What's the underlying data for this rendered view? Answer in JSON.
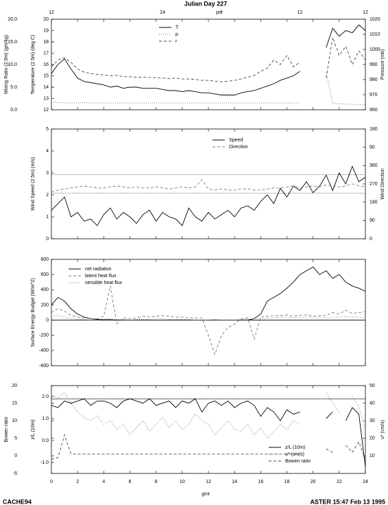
{
  "title": "Julian Day 227",
  "top_axis_label": "pdt",
  "top_ticks": [
    {
      "value": 0,
      "label": "12"
    },
    {
      "value": 8.5,
      "label": "24"
    },
    {
      "value": 19,
      "label": "12"
    },
    {
      "value": 24,
      "label": "12"
    }
  ],
  "xlabel": "gmt",
  "footer_left": "CACHE94",
  "footer_right": "ASTER 15:47 Feb 13 1995",
  "chart_data": [
    {
      "type": "line",
      "xlim": [
        0,
        24
      ],
      "x": [
        0,
        0.5,
        1,
        1.5,
        2,
        2.5,
        3,
        3.5,
        4,
        4.5,
        5,
        5.5,
        6,
        6.5,
        7,
        7.5,
        8,
        8.5,
        9,
        9.5,
        10,
        10.5,
        11,
        11.5,
        12,
        12.5,
        13,
        13.5,
        14,
        14.5,
        15,
        15.5,
        16,
        16.5,
        17,
        17.5,
        18,
        18.5,
        19,
        19.5,
        20,
        20.5,
        21,
        21.5,
        22,
        22.5,
        23,
        23.5,
        24
      ],
      "ylabel": "Temperature (2.5m) (deg C)",
      "ylim": [
        12,
        20
      ],
      "yticks": [
        12,
        13,
        14,
        15,
        16,
        17,
        18,
        19,
        20
      ],
      "y3label": "Mixing Ratio (2.5m) (gm/kg)",
      "y3lim": [
        0,
        20
      ],
      "y3ticks": [
        {
          "value": 0,
          "label": "0.0"
        },
        {
          "value": 5,
          "label": "5.0"
        },
        {
          "value": 10,
          "label": "10.0"
        },
        {
          "value": 15,
          "label": "15.0"
        },
        {
          "value": 20,
          "label": "20.0"
        }
      ],
      "y2label": "Pressure (mb)",
      "y2lim": [
        960,
        1020
      ],
      "y2ticks": [
        960,
        970,
        980,
        990,
        1000,
        1010,
        1020
      ],
      "series": [
        {
          "name": "T",
          "color": "#000000",
          "dash": "solid",
          "axis": "y",
          "values": [
            15.2,
            16.0,
            16.5,
            15.6,
            14.8,
            14.5,
            14.4,
            14.3,
            14.2,
            14.0,
            14.1,
            13.9,
            14.0,
            14.0,
            13.9,
            13.9,
            13.9,
            13.8,
            13.7,
            13.7,
            13.6,
            13.7,
            13.6,
            13.5,
            13.5,
            13.4,
            13.3,
            13.3,
            13.3,
            13.5,
            13.6,
            13.7,
            13.9,
            14.1,
            14.3,
            14.6,
            14.8,
            15.0,
            15.4,
            null,
            null,
            null,
            17.5,
            19.2,
            18.5,
            19.0,
            18.8,
            19.5,
            19.0
          ]
        },
        {
          "name": "p",
          "color": "#666666",
          "dash": "dotted",
          "axis": "y2",
          "values": [
            965,
            964.8,
            964.6,
            964.5,
            964.6,
            964.7,
            964.5,
            964.6,
            964.5,
            964.4,
            964.5,
            964.6,
            964.5,
            964.5,
            964.4,
            964.5,
            964.6,
            964.5,
            964.5,
            964.4,
            964.5,
            964.5,
            964.6,
            964.5,
            964.4,
            964.5,
            964.5,
            964.6,
            964.5,
            964.5,
            964.4,
            964.5,
            964.5,
            964.6,
            964.5,
            964.5,
            964.4,
            964.5,
            964.5,
            null,
            null,
            null,
            985,
            964.2,
            964,
            963.8,
            963.6,
            963.5,
            963.4
          ]
        },
        {
          "name": "r",
          "color": "#444444",
          "dash": "dashed",
          "axis": "y3",
          "values": [
            9.5,
            11,
            11.5,
            10.5,
            9,
            8.3,
            8,
            7.8,
            7.7,
            7.5,
            7.6,
            7.3,
            7.3,
            7.2,
            7.2,
            7.1,
            7.1,
            7,
            6.9,
            7,
            6.8,
            6.8,
            6.7,
            6.5,
            6.5,
            6.3,
            6.2,
            6.3,
            6.5,
            6.8,
            7.2,
            7.6,
            8.5,
            9.2,
            11,
            10,
            12,
            9.5,
            10.5,
            null,
            null,
            null,
            7,
            16,
            12,
            14,
            10,
            13,
            11
          ]
        }
      ]
    },
    {
      "type": "line",
      "xlim": [
        0,
        24
      ],
      "x": [
        0,
        0.5,
        1,
        1.5,
        2,
        2.5,
        3,
        3.5,
        4,
        4.5,
        5,
        5.5,
        6,
        6.5,
        7,
        7.5,
        8,
        8.5,
        9,
        9.5,
        10,
        10.5,
        11,
        11.5,
        12,
        12.5,
        13,
        13.5,
        14,
        14.5,
        15,
        15.5,
        16,
        16.5,
        17,
        17.5,
        18,
        18.5,
        19,
        19.5,
        20,
        20.5,
        21,
        21.5,
        22,
        22.5,
        23,
        23.5,
        24
      ],
      "ylabel": "Wind Speed (2.5m) (m/s)",
      "ylim": [
        0,
        5
      ],
      "yticks": [
        0,
        1,
        2,
        3,
        4,
        5
      ],
      "y2label": "Wind Direction",
      "y2lim": [
        0,
        540
      ],
      "y2ticks": [
        0,
        90,
        180,
        270,
        360,
        {
          "value": 450,
          "label": "90"
        },
        {
          "value": 540,
          "label": "180"
        }
      ],
      "hlines_axis": "y2",
      "hlines": [
        225,
        315
      ],
      "series": [
        {
          "name": "Speed",
          "color": "#000000",
          "dash": "solid",
          "axis": "y",
          "values": [
            1.3,
            1.6,
            1.9,
            1.0,
            1.2,
            0.8,
            0.9,
            0.6,
            1.1,
            1.4,
            0.9,
            1.2,
            1.0,
            0.7,
            1.1,
            1.3,
            0.8,
            1.2,
            1.0,
            0.9,
            0.6,
            1.4,
            1.0,
            0.8,
            1.2,
            0.9,
            1.1,
            1.3,
            1.0,
            1.4,
            1.5,
            1.3,
            1.7,
            2.0,
            1.6,
            2.3,
            1.9,
            2.4,
            2.2,
            2.6,
            2.1,
            2.4,
            2.9,
            2.2,
            3.0,
            2.5,
            3.3,
            2.6,
            2.8
          ]
        },
        {
          "name": "Direction",
          "color": "#777777",
          "dash": "dashed",
          "axis": "y2",
          "values": [
            230,
            240,
            245,
            250,
            255,
            260,
            255,
            250,
            250,
            255,
            260,
            255,
            250,
            255,
            250,
            250,
            255,
            250,
            245,
            250,
            255,
            250,
            255,
            290,
            245,
            240,
            245,
            240,
            240,
            245,
            245,
            240,
            240,
            245,
            250,
            250,
            255,
            260,
            250,
            255,
            260,
            255,
            265,
            260,
            255,
            260,
            270,
            260,
            255
          ]
        }
      ]
    },
    {
      "type": "line",
      "xlim": [
        0,
        24
      ],
      "x": [
        0,
        0.5,
        1,
        1.5,
        2,
        2.5,
        3,
        3.5,
        4,
        4.5,
        5,
        5.5,
        6,
        6.5,
        7,
        7.5,
        8,
        8.5,
        9,
        9.5,
        10,
        10.5,
        11,
        11.5,
        12,
        12.5,
        13,
        13.5,
        14,
        14.5,
        15,
        15.5,
        16,
        16.5,
        17,
        17.5,
        18,
        18.5,
        19,
        19.5,
        20,
        20.5,
        21,
        21.5,
        22,
        22.5,
        23,
        23.5,
        24
      ],
      "ylabel": "Surface Energy Budget (W/m^2)",
      "ylim": [
        -600,
        800
      ],
      "yticks": [
        -600,
        -400,
        -200,
        0,
        200,
        400,
        600,
        800
      ],
      "series": [
        {
          "name": "net radiation",
          "color": "#000000",
          "dash": "solid",
          "axis": "y",
          "values": [
            200,
            300,
            250,
            150,
            80,
            40,
            20,
            10,
            5,
            5,
            0,
            0,
            0,
            0,
            0,
            0,
            0,
            0,
            0,
            0,
            0,
            0,
            0,
            0,
            0,
            0,
            0,
            0,
            0,
            0,
            0,
            20,
            80,
            250,
            300,
            350,
            420,
            500,
            600,
            650,
            700,
            600,
            650,
            550,
            600,
            500,
            450,
            420,
            380
          ]
        },
        {
          "name": "latent heat flux",
          "color": "#777777",
          "dash": "dashed",
          "axis": "y",
          "values": [
            100,
            150,
            120,
            60,
            40,
            30,
            20,
            20,
            50,
            450,
            -50,
            30,
            20,
            30,
            50,
            40,
            50,
            60,
            50,
            40,
            40,
            30,
            30,
            30,
            -200,
            -450,
            -200,
            -100,
            -50,
            20,
            30,
            -250,
            40,
            50,
            60,
            60,
            70,
            50,
            60,
            70,
            50,
            60,
            60,
            100,
            80,
            130,
            90,
            100,
            110
          ]
        },
        {
          "name": "sensible heat flux",
          "color": "#777777",
          "dash": "dotted",
          "axis": "y",
          "values": [
            50,
            60,
            40,
            20,
            10,
            10,
            0,
            0,
            10,
            20,
            10,
            10,
            0,
            10,
            10,
            10,
            20,
            20,
            10,
            10,
            10,
            10,
            0,
            0,
            0,
            10,
            0,
            0,
            0,
            10,
            10,
            20,
            20,
            30,
            30,
            40,
            40,
            30,
            30,
            40,
            40,
            40,
            30,
            30,
            40,
            50,
            40,
            40,
            30
          ]
        }
      ]
    },
    {
      "type": "line",
      "xlim": [
        0,
        24
      ],
      "x": [
        0,
        0.5,
        1,
        1.5,
        2,
        2.5,
        3,
        3.5,
        4,
        4.5,
        5,
        5.5,
        6,
        6.5,
        7,
        7.5,
        8,
        8.5,
        9,
        9.5,
        10,
        10.5,
        11,
        11.5,
        12,
        12.5,
        13,
        13.5,
        14,
        14.5,
        15,
        15.5,
        16,
        16.5,
        17,
        17.5,
        18,
        18.5,
        19,
        19.5,
        20,
        20.5,
        21,
        21.5,
        22,
        22.5,
        23,
        23.5,
        24
      ],
      "xticks": [
        0,
        2,
        4,
        6,
        8,
        10,
        12,
        14,
        16,
        18,
        20,
        22,
        24
      ],
      "ylabel": "z/L (10m)",
      "ylim": [
        -1.5,
        2.5
      ],
      "yticks": [
        {
          "value": -1,
          "label": "-1.0"
        },
        {
          "value": 0,
          "label": "0.0"
        },
        {
          "value": 1,
          "label": "1.0"
        },
        {
          "value": 2,
          "label": "2.0"
        }
      ],
      "y3label": "Bowen ratio",
      "y3lim": [
        -5,
        20
      ],
      "y3ticks": [
        -5,
        0,
        5,
        10,
        15,
        20
      ],
      "y2label": "u* (cm/s)",
      "y2lim": [
        0,
        50
      ],
      "y2ticks": [
        10,
        20,
        30,
        40,
        50
      ],
      "hlines_axis": "y",
      "hlines": [
        1.9
      ],
      "series": [
        {
          "name": "z/L (10m)",
          "color": "#000000",
          "dash": "solid",
          "axis": "y",
          "values": [
            1.6,
            1.5,
            1.8,
            1.7,
            1.8,
            1.9,
            1.6,
            1.8,
            1.8,
            1.7,
            1.5,
            1.8,
            1.9,
            1.8,
            1.7,
            1.9,
            1.6,
            1.7,
            1.8,
            1.5,
            1.8,
            1.7,
            1.9,
            1.3,
            1.7,
            1.8,
            1.6,
            1.8,
            1.5,
            1.7,
            1.8,
            1.6,
            1.1,
            1.5,
            1.3,
            0.9,
            1.4,
            1.2,
            1.3,
            null,
            null,
            null,
            1.0,
            1.3,
            null,
            0.9,
            1.5,
            1.2,
            -1.2
          ]
        },
        {
          "name": "u* (cm/s)",
          "color": "#777777",
          "dash": "dotted",
          "axis": "y2",
          "values": [
            45,
            43,
            46,
            40,
            35,
            32,
            30,
            33,
            28,
            30,
            25,
            28,
            22,
            26,
            30,
            24,
            28,
            32,
            26,
            30,
            25,
            28,
            34,
            30,
            28,
            22,
            26,
            30,
            25,
            24,
            28,
            22,
            26,
            20,
            24,
            28,
            25,
            30,
            28,
            null,
            null,
            null,
            46,
            40,
            35,
            null,
            44,
            38,
            25
          ]
        },
        {
          "name": "Bowen ratio",
          "color": "#444444",
          "dash": "dashed",
          "axis": "y3",
          "values": [
            -1,
            -0.5,
            6,
            0.5,
            0.5,
            0.5,
            0.5,
            0.5,
            0.5,
            0.5,
            0.5,
            0.5,
            0.5,
            0.5,
            0.5,
            0.5,
            0.5,
            0.5,
            0.5,
            0.5,
            0.5,
            0.5,
            0.5,
            0.5,
            0.5,
            0.5,
            0.5,
            0.5,
            0.5,
            0.5,
            0.5,
            0.5,
            0.5,
            0.5,
            0.5,
            0.5,
            0.5,
            0.5,
            0.5,
            null,
            null,
            null,
            2,
            1,
            null,
            3,
            1,
            4,
            -1
          ]
        }
      ]
    }
  ]
}
